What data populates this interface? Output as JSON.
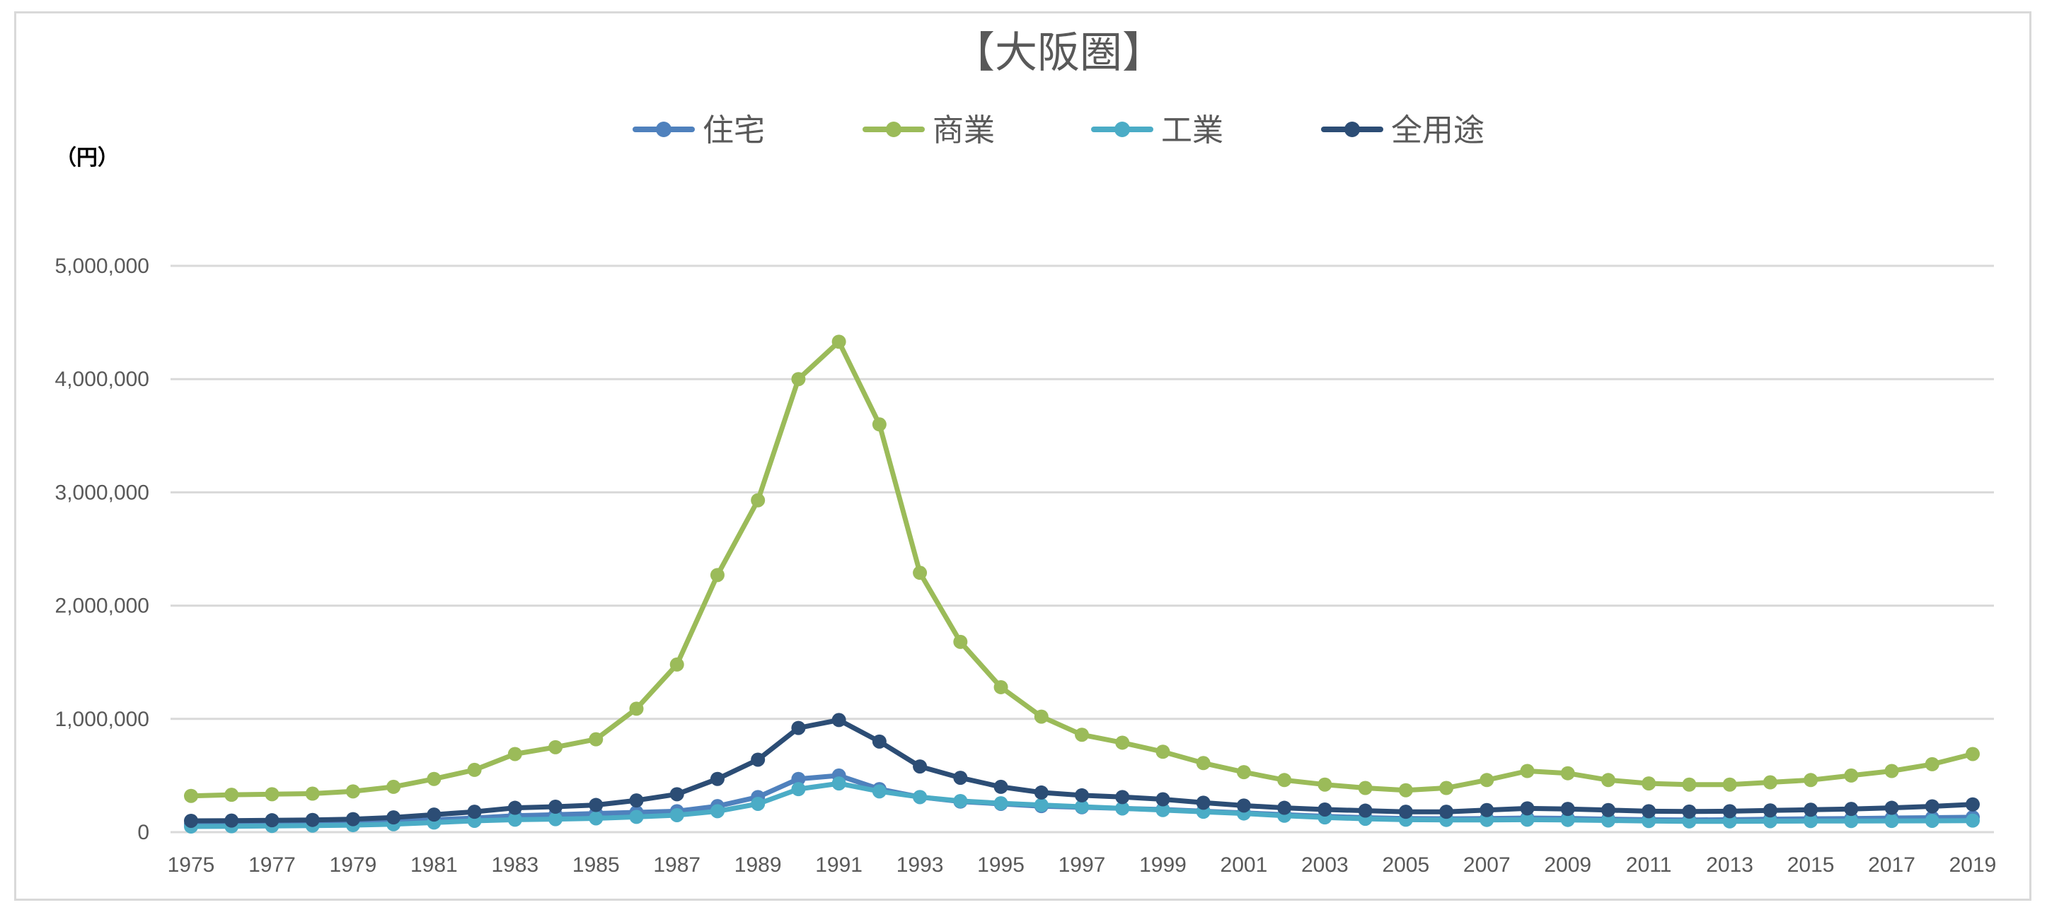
{
  "chart_data": {
    "type": "line",
    "title": "【大阪圏】",
    "ylabel": "（円）",
    "xlabel": "",
    "ylim": [
      0,
      5000000
    ],
    "yticks": [
      0,
      1000000,
      2000000,
      3000000,
      4000000,
      5000000
    ],
    "ytick_labels": [
      "0",
      "1,000,000",
      "2,000,000",
      "3,000,000",
      "4,000,000",
      "5,000,000"
    ],
    "xtick_labels": [
      "1975",
      "1977",
      "1979",
      "1981",
      "1983",
      "1985",
      "1987",
      "1989",
      "1991",
      "1993",
      "1995",
      "1997",
      "1999",
      "2001",
      "2003",
      "2005",
      "2007",
      "2009",
      "2011",
      "2013",
      "2015",
      "2017",
      "2019"
    ],
    "grid": true,
    "legend_position": "top",
    "x": [
      1975,
      1976,
      1977,
      1978,
      1979,
      1980,
      1981,
      1982,
      1983,
      1984,
      1985,
      1986,
      1987,
      1988,
      1989,
      1990,
      1991,
      1992,
      1993,
      1994,
      1995,
      1996,
      1997,
      1998,
      1999,
      2000,
      2001,
      2002,
      2003,
      2004,
      2005,
      2006,
      2007,
      2008,
      2009,
      2010,
      2011,
      2012,
      2013,
      2014,
      2015,
      2016,
      2017,
      2018,
      2019
    ],
    "series": [
      {
        "name": "住宅",
        "color": "#4f81bd",
        "values": [
          70000,
          72000,
          75000,
          78000,
          82000,
          92000,
          110000,
          125000,
          145000,
          155000,
          165000,
          175000,
          185000,
          230000,
          310000,
          470000,
          500000,
          380000,
          310000,
          270000,
          250000,
          230000,
          220000,
          210000,
          200000,
          185000,
          170000,
          155000,
          140000,
          128000,
          120000,
          118000,
          120000,
          125000,
          122000,
          115000,
          110000,
          108000,
          110000,
          115000,
          118000,
          120000,
          125000,
          128000,
          132000
        ]
      },
      {
        "name": "商業",
        "color": "#9bbb59",
        "values": [
          320000,
          330000,
          335000,
          340000,
          360000,
          400000,
          470000,
          550000,
          690000,
          750000,
          820000,
          1090000,
          1480000,
          2270000,
          2930000,
          4000000,
          4330000,
          3600000,
          2290000,
          1680000,
          1280000,
          1020000,
          860000,
          790000,
          710000,
          610000,
          530000,
          460000,
          420000,
          390000,
          370000,
          390000,
          460000,
          540000,
          520000,
          460000,
          430000,
          420000,
          420000,
          440000,
          460000,
          500000,
          540000,
          600000,
          690000
        ]
      },
      {
        "name": "工業",
        "color": "#4bacc6",
        "values": [
          50000,
          52000,
          55000,
          58000,
          62000,
          70000,
          85000,
          100000,
          110000,
          115000,
          122000,
          135000,
          150000,
          185000,
          250000,
          380000,
          430000,
          360000,
          310000,
          275000,
          255000,
          240000,
          225000,
          210000,
          195000,
          180000,
          165000,
          145000,
          130000,
          118000,
          110000,
          108000,
          108000,
          110000,
          108000,
          103000,
          98000,
          95000,
          95000,
          97000,
          98000,
          98000,
          99000,
          100000,
          102000
        ]
      },
      {
        "name": "全用途",
        "color": "#2c4d75",
        "values": [
          100000,
          102000,
          105000,
          108000,
          115000,
          130000,
          155000,
          180000,
          215000,
          225000,
          240000,
          280000,
          335000,
          470000,
          640000,
          920000,
          990000,
          800000,
          580000,
          480000,
          400000,
          350000,
          325000,
          310000,
          290000,
          260000,
          235000,
          215000,
          200000,
          190000,
          180000,
          180000,
          195000,
          210000,
          205000,
          195000,
          185000,
          182000,
          185000,
          192000,
          198000,
          205000,
          215000,
          228000,
          245000
        ]
      }
    ]
  }
}
